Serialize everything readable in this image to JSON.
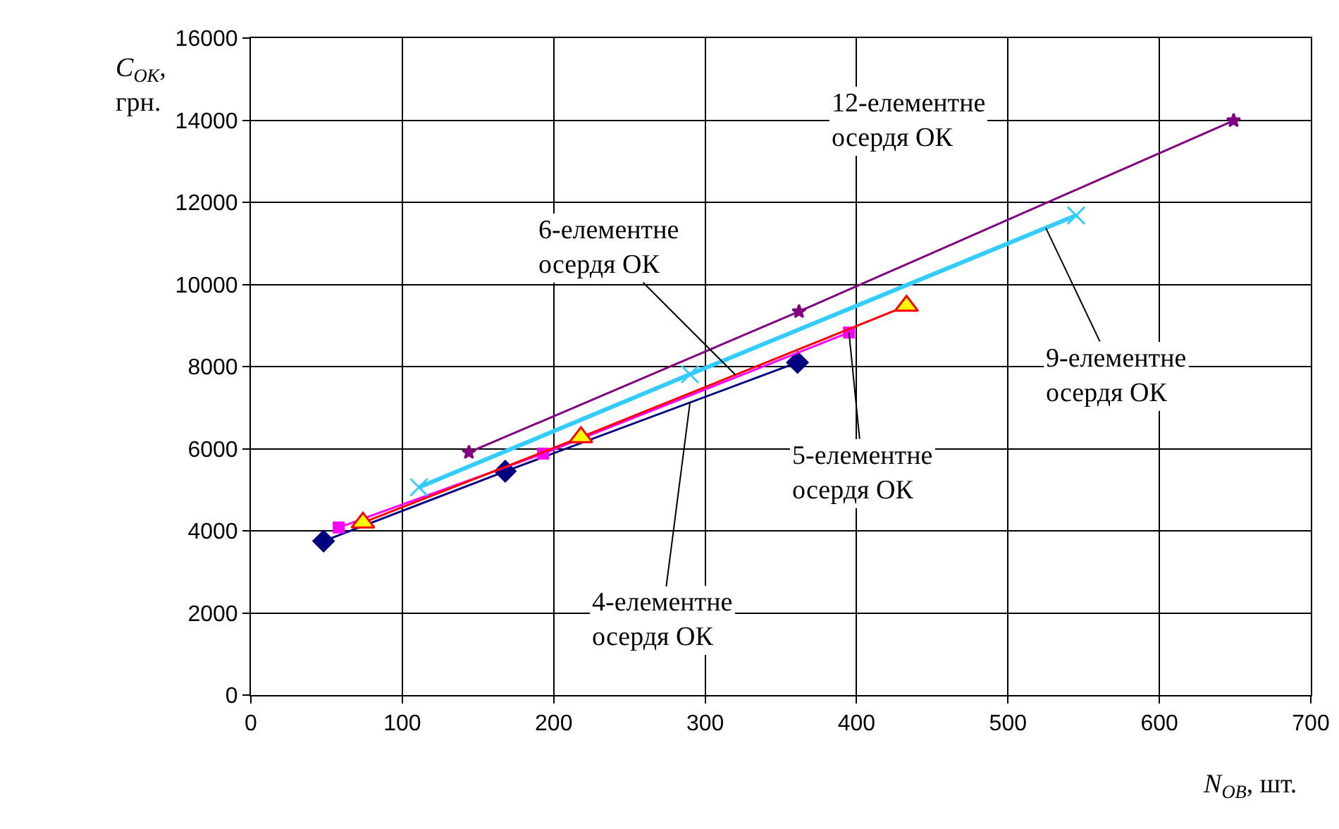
{
  "chart_data": {
    "type": "line",
    "xlabel": "N$_{ОВ}$, шт.",
    "ylabel": "C$_{ОК}$, грн.",
    "xlim": [
      0,
      700
    ],
    "xticks": [
      0,
      100,
      200,
      300,
      400,
      500,
      600,
      700
    ],
    "ylim": [
      0,
      16000
    ],
    "yticks": [
      0,
      2000,
      4000,
      6000,
      8000,
      10000,
      12000,
      14000,
      16000
    ],
    "grid": true,
    "legend": false,
    "series": [
      {
        "name": "4-елементне\nосердя ОК",
        "color": "#000080",
        "marker": "diamond",
        "x": [
          48,
          168,
          361
        ],
        "values": [
          3750,
          5450,
          8100
        ]
      },
      {
        "name": "5-елементне\nосердя ОК",
        "color": "#ff00ff",
        "marker": "square",
        "x": [
          58,
          193,
          395
        ],
        "values": [
          4080,
          5880,
          8830
        ]
      },
      {
        "name": "6-елементне\nосердя ОК",
        "color": "#ff0000",
        "marker": "triangle",
        "x": [
          74,
          218,
          433
        ],
        "values": [
          4200,
          6280,
          9480
        ]
      },
      {
        "name": "9-елементне\nосердя ОК",
        "color": "#33ccff",
        "marker": "cross",
        "x": [
          111,
          290,
          545
        ],
        "values": [
          5060,
          7810,
          11680
        ]
      },
      {
        "name": "12-елементне\nосердя ОК",
        "color": "#800080",
        "marker": "star",
        "x": [
          144,
          362,
          649
        ],
        "values": [
          5910,
          9340,
          13990
        ]
      }
    ]
  }
}
